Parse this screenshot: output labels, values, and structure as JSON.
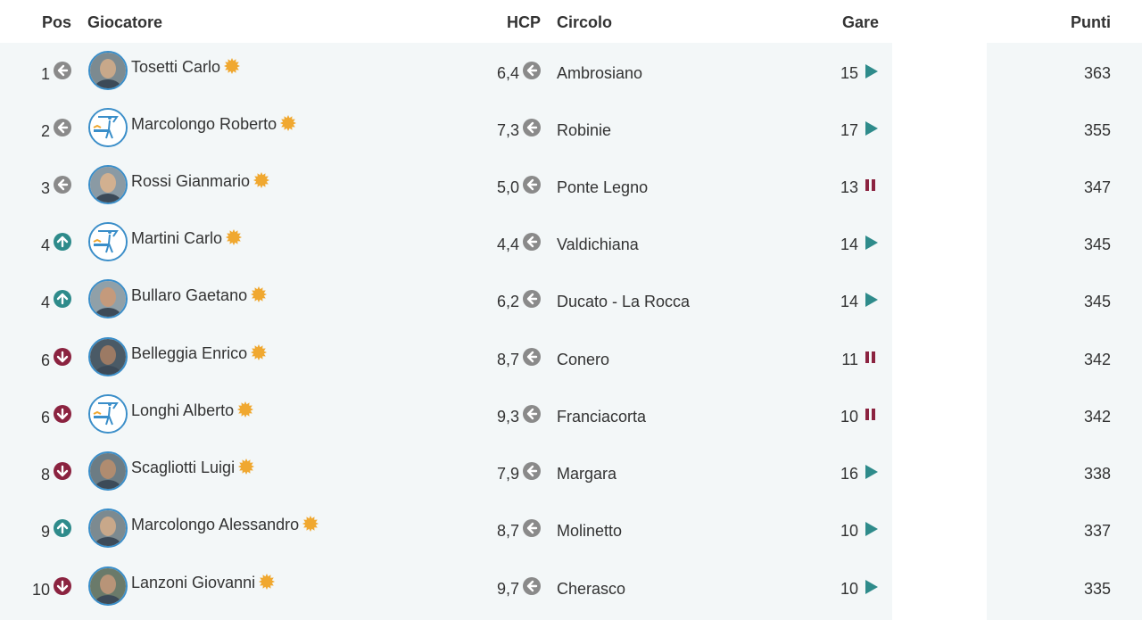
{
  "header": {
    "pos": "Pos",
    "giocatore": "Giocatore",
    "hcp": "HCP",
    "circolo": "Circolo",
    "gare": "Gare",
    "punti": "Punti"
  },
  "colors": {
    "row_background": "#f3f7f8",
    "trend_same": "#8a8a8a",
    "trend_up": "#2e8b8b",
    "trend_down": "#8b2340",
    "play_icon": "#2e8b8b",
    "pause_icon": "#8b2340",
    "star": "#f0a830",
    "avatar_border": "#3a8ec9"
  },
  "rows": [
    {
      "pos": "1",
      "trend": "same",
      "avatar": "photo",
      "name": "Tosetti Carlo",
      "hcp": "6,4",
      "circolo": "Ambrosiano",
      "gare": "15",
      "gare_icon": "play-icon",
      "punti": "363"
    },
    {
      "pos": "2",
      "trend": "same",
      "avatar": "wegolfers-logo",
      "name": "Marcolongo Roberto",
      "hcp": "7,3",
      "circolo": "Robinie",
      "gare": "17",
      "gare_icon": "play-icon",
      "punti": "355"
    },
    {
      "pos": "3",
      "trend": "same",
      "avatar": "photo",
      "name": "Rossi Gianmario",
      "hcp": "5,0",
      "circolo": "Ponte Legno",
      "gare": "13",
      "gare_icon": "pause-icon",
      "punti": "347"
    },
    {
      "pos": "4",
      "trend": "up",
      "avatar": "wegolfers-logo",
      "name": "Martini Carlo",
      "hcp": "4,4",
      "circolo": "Valdichiana",
      "gare": "14",
      "gare_icon": "play-icon",
      "punti": "345"
    },
    {
      "pos": "4",
      "trend": "up",
      "avatar": "photo",
      "name": "Bullaro Gaetano",
      "hcp": "6,2",
      "circolo": "Ducato - La Rocca",
      "gare": "14",
      "gare_icon": "play-icon",
      "punti": "345"
    },
    {
      "pos": "6",
      "trend": "down",
      "avatar": "photo",
      "name": "Belleggia Enrico",
      "hcp": "8,7",
      "circolo": "Conero",
      "gare": "11",
      "gare_icon": "pause-icon",
      "punti": "342"
    },
    {
      "pos": "6",
      "trend": "down",
      "avatar": "wegolfers-logo",
      "name": "Longhi Alberto",
      "hcp": "9,3",
      "circolo": "Franciacorta",
      "gare": "10",
      "gare_icon": "pause-icon",
      "punti": "342"
    },
    {
      "pos": "8",
      "trend": "down",
      "avatar": "photo",
      "name": "Scagliotti Luigi",
      "hcp": "7,9",
      "circolo": "Margara",
      "gare": "16",
      "gare_icon": "play-icon",
      "punti": "338"
    },
    {
      "pos": "9",
      "trend": "up",
      "avatar": "photo",
      "name": "Marcolongo Alessandro",
      "hcp": "8,7",
      "circolo": "Molinetto",
      "gare": "10",
      "gare_icon": "play-icon",
      "punti": "337"
    },
    {
      "pos": "10",
      "trend": "down",
      "avatar": "photo",
      "name": "Lanzoni Giovanni",
      "hcp": "9,7",
      "circolo": "Cherasco",
      "gare": "10",
      "gare_icon": "play-icon",
      "punti": "335"
    }
  ]
}
